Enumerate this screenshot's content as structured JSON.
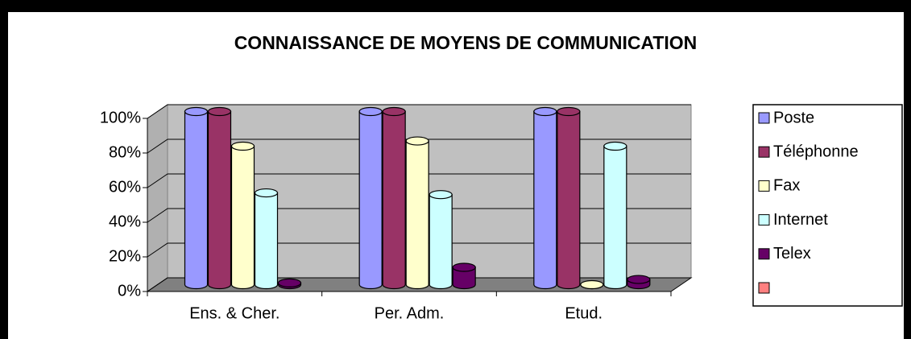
{
  "chart_data": {
    "type": "bar",
    "title": "CONNAISSANCE DE MOYENS DE COMMUNICATION",
    "categories": [
      "Ens. & Cher.",
      "Per. Adm.",
      "Etud."
    ],
    "series": [
      {
        "name": "Poste",
        "color": "#9999ff",
        "values": [
          100,
          100,
          100
        ]
      },
      {
        "name": "Téléphonne",
        "color": "#993366",
        "values": [
          100,
          100,
          100
        ]
      },
      {
        "name": "Fax",
        "color": "#ffffcc",
        "values": [
          80,
          83,
          0
        ]
      },
      {
        "name": "Internet",
        "color": "#ccffff",
        "values": [
          53,
          52,
          80
        ]
      },
      {
        "name": "Telex",
        "color": "#660066",
        "values": [
          1,
          10,
          3
        ]
      },
      {
        "name": null,
        "color": "#ff8080",
        "values": [
          null,
          null,
          null
        ]
      }
    ],
    "ylim": [
      0,
      100
    ],
    "yticks": [
      {
        "value": 0,
        "label": "0%"
      },
      {
        "value": 20,
        "label": "20%"
      },
      {
        "value": 40,
        "label": "40%"
      },
      {
        "value": 60,
        "label": "60%"
      },
      {
        "value": 80,
        "label": "80%"
      },
      {
        "value": 100,
        "label": "100%"
      }
    ],
    "grid": true,
    "legend": "right"
  }
}
